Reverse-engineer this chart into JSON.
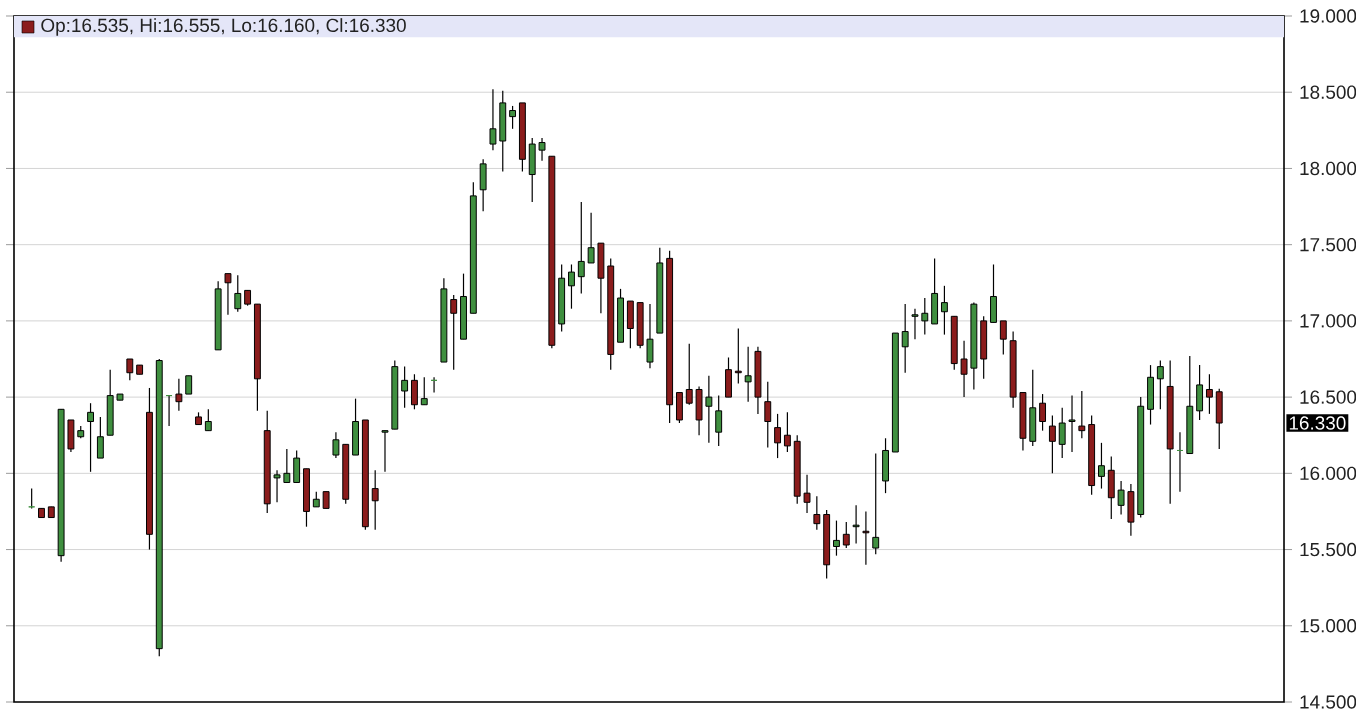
{
  "chart_data": {
    "type": "candlestick",
    "categories": [
      null,
      null,
      null,
      null,
      null,
      null,
      null,
      null,
      null,
      null,
      null,
      null,
      null,
      null,
      null,
      null,
      null,
      null,
      null,
      null,
      null,
      null,
      null,
      null,
      null,
      null,
      null,
      null,
      null,
      null,
      null,
      null,
      null,
      null,
      null,
      null,
      null,
      null,
      null,
      null,
      null,
      null,
      null,
      null,
      null,
      null,
      null,
      null,
      null,
      null,
      null,
      null,
      null,
      null,
      null,
      null,
      null,
      null,
      null,
      null,
      null,
      null,
      null,
      null,
      null,
      null,
      null,
      null,
      null,
      null,
      null,
      null,
      null,
      null,
      null,
      null,
      null,
      null,
      null,
      null,
      null,
      null,
      null,
      null,
      null,
      null,
      null,
      null,
      null,
      null,
      null,
      null,
      null,
      null,
      null,
      null,
      null,
      null,
      null,
      null,
      null,
      null,
      null,
      null,
      null,
      null,
      null,
      null,
      null,
      null,
      null,
      null,
      null,
      null,
      null,
      null,
      null,
      null,
      null,
      null,
      null,
      null
    ],
    "ohlc": [
      [
        15.78,
        15.9,
        15.77,
        15.78
      ],
      [
        15.77,
        15.77,
        15.71,
        15.71
      ],
      [
        15.78,
        15.78,
        15.71,
        15.71
      ],
      [
        15.46,
        16.42,
        15.42,
        16.42
      ],
      [
        16.35,
        16.35,
        16.14,
        16.16
      ],
      [
        16.24,
        16.31,
        16.23,
        16.28
      ],
      [
        16.34,
        16.46,
        16.01,
        16.4
      ],
      [
        16.1,
        16.37,
        16.1,
        16.24
      ],
      [
        16.25,
        16.68,
        16.25,
        16.51
      ],
      [
        16.48,
        16.52,
        16.48,
        16.52
      ],
      [
        16.75,
        16.75,
        16.61,
        16.66
      ],
      [
        16.71,
        16.71,
        16.65,
        16.65
      ],
      [
        16.4,
        16.56,
        15.5,
        15.6
      ],
      [
        14.85,
        16.75,
        14.8,
        16.74
      ],
      [
        16.51,
        16.51,
        16.31,
        16.51
      ],
      [
        16.52,
        16.62,
        16.41,
        16.47
      ],
      [
        16.52,
        16.64,
        16.52,
        16.64
      ],
      [
        16.37,
        16.4,
        16.32,
        16.32
      ],
      [
        16.28,
        16.42,
        16.28,
        16.34
      ],
      [
        16.81,
        17.26,
        16.81,
        17.21
      ],
      [
        17.31,
        17.31,
        17.04,
        17.25
      ],
      [
        17.08,
        17.3,
        17.06,
        17.18
      ],
      [
        17.2,
        17.2,
        17.1,
        17.11
      ],
      [
        17.11,
        17.11,
        16.41,
        16.62
      ],
      [
        16.28,
        16.41,
        15.74,
        15.8
      ],
      [
        15.97,
        16.02,
        15.81,
        15.99
      ],
      [
        15.94,
        16.16,
        15.94,
        16.0
      ],
      [
        15.94,
        16.15,
        15.94,
        16.1
      ],
      [
        16.03,
        16.03,
        15.65,
        15.75
      ],
      [
        15.78,
        15.88,
        15.78,
        15.83
      ],
      [
        15.88,
        15.88,
        15.77,
        15.77
      ],
      [
        16.12,
        16.27,
        16.1,
        16.22
      ],
      [
        16.19,
        16.19,
        15.8,
        15.83
      ],
      [
        16.12,
        16.49,
        16.12,
        16.34
      ],
      [
        16.35,
        16.35,
        15.63,
        15.65
      ],
      [
        15.9,
        16.02,
        15.63,
        15.82
      ],
      [
        16.27,
        16.28,
        16.01,
        16.28
      ],
      [
        16.29,
        16.74,
        16.29,
        16.7
      ],
      [
        16.54,
        16.7,
        16.43,
        16.61
      ],
      [
        16.61,
        16.65,
        16.42,
        16.45
      ],
      [
        16.45,
        16.63,
        16.45,
        16.49
      ],
      [
        16.61,
        16.63,
        16.53,
        16.61
      ],
      [
        16.73,
        17.28,
        16.73,
        17.21
      ],
      [
        17.14,
        17.17,
        16.68,
        17.05
      ],
      [
        16.88,
        17.31,
        16.88,
        17.16
      ],
      [
        17.05,
        17.91,
        17.05,
        17.82
      ],
      [
        17.86,
        18.06,
        17.72,
        18.03
      ],
      [
        18.16,
        18.52,
        18.12,
        18.26
      ],
      [
        18.18,
        18.51,
        17.98,
        18.43
      ],
      [
        18.34,
        18.41,
        18.26,
        18.38
      ],
      [
        18.43,
        18.43,
        17.98,
        18.06
      ],
      [
        17.96,
        18.2,
        17.78,
        18.16
      ],
      [
        18.12,
        18.2,
        18.05,
        18.17
      ],
      [
        18.08,
        18.08,
        16.82,
        16.84
      ],
      [
        16.98,
        17.37,
        16.93,
        17.28
      ],
      [
        17.23,
        17.37,
        17.08,
        17.32
      ],
      [
        17.29,
        17.78,
        17.18,
        17.39
      ],
      [
        17.38,
        17.71,
        17.38,
        17.48
      ],
      [
        17.51,
        17.51,
        17.05,
        17.28
      ],
      [
        17.36,
        17.41,
        16.68,
        16.78
      ],
      [
        16.86,
        17.21,
        16.86,
        17.15
      ],
      [
        17.13,
        17.13,
        16.82,
        16.95
      ],
      [
        17.12,
        17.12,
        16.82,
        16.84
      ],
      [
        16.73,
        17.11,
        16.69,
        16.88
      ],
      [
        16.92,
        17.48,
        16.92,
        17.38
      ],
      [
        17.41,
        17.46,
        16.33,
        16.45
      ],
      [
        16.53,
        16.53,
        16.33,
        16.35
      ],
      [
        16.55,
        16.85,
        16.45,
        16.46
      ],
      [
        16.55,
        16.57,
        16.25,
        16.35
      ],
      [
        16.44,
        16.64,
        16.2,
        16.5
      ],
      [
        16.27,
        16.51,
        16.18,
        16.41
      ],
      [
        16.68,
        16.76,
        16.5,
        16.5
      ],
      [
        16.67,
        16.95,
        16.59,
        16.66
      ],
      [
        16.6,
        16.83,
        16.47,
        16.64
      ],
      [
        16.8,
        16.83,
        16.39,
        16.5
      ],
      [
        16.47,
        16.6,
        16.17,
        16.34
      ],
      [
        16.3,
        16.39,
        16.1,
        16.2
      ],
      [
        16.25,
        16.4,
        16.14,
        16.18
      ],
      [
        16.21,
        16.25,
        15.8,
        15.85
      ],
      [
        15.87,
        15.99,
        15.74,
        15.81
      ],
      [
        15.73,
        15.85,
        15.63,
        15.67
      ],
      [
        15.73,
        15.76,
        15.31,
        15.4
      ],
      [
        15.52,
        15.69,
        15.46,
        15.56
      ],
      [
        15.6,
        15.68,
        15.51,
        15.53
      ],
      [
        15.65,
        15.79,
        15.54,
        15.66
      ],
      [
        15.62,
        15.75,
        15.4,
        15.61
      ],
      [
        15.51,
        16.13,
        15.47,
        15.58
      ],
      [
        15.95,
        16.23,
        15.87,
        16.15
      ],
      [
        16.14,
        16.92,
        16.14,
        16.92
      ],
      [
        16.83,
        17.11,
        16.66,
        16.93
      ],
      [
        17.03,
        17.08,
        16.88,
        17.04
      ],
      [
        17.0,
        17.15,
        16.91,
        17.05
      ],
      [
        16.98,
        17.41,
        16.98,
        17.18
      ],
      [
        17.06,
        17.23,
        16.91,
        17.12
      ],
      [
        17.03,
        17.03,
        16.68,
        16.72
      ],
      [
        16.75,
        16.87,
        16.5,
        16.65
      ],
      [
        16.69,
        17.12,
        16.55,
        17.11
      ],
      [
        17.0,
        17.03,
        16.62,
        16.75
      ],
      [
        16.99,
        17.37,
        16.99,
        17.16
      ],
      [
        17.0,
        17.0,
        16.78,
        16.88
      ],
      [
        16.87,
        16.93,
        16.43,
        16.5
      ],
      [
        16.53,
        16.53,
        16.15,
        16.23
      ],
      [
        16.21,
        16.68,
        16.18,
        16.43
      ],
      [
        16.46,
        16.52,
        16.28,
        16.34
      ],
      [
        16.31,
        16.38,
        16.0,
        16.21
      ],
      [
        16.19,
        16.43,
        16.1,
        16.33
      ],
      [
        16.34,
        16.51,
        16.14,
        16.35
      ],
      [
        16.31,
        16.54,
        16.23,
        16.28
      ],
      [
        16.32,
        16.38,
        15.86,
        15.92
      ],
      [
        15.98,
        16.2,
        15.9,
        16.05
      ],
      [
        16.02,
        16.11,
        15.7,
        15.84
      ],
      [
        15.79,
        15.95,
        15.73,
        15.89
      ],
      [
        15.88,
        15.93,
        15.59,
        15.68
      ],
      [
        15.73,
        16.5,
        15.71,
        16.44
      ],
      [
        16.42,
        16.71,
        16.32,
        16.63
      ],
      [
        16.62,
        16.74,
        16.42,
        16.7
      ],
      [
        16.57,
        16.74,
        15.8,
        16.16
      ],
      [
        16.15,
        16.27,
        15.88,
        16.15
      ],
      [
        16.13,
        16.77,
        16.13,
        16.44
      ],
      [
        16.41,
        16.71,
        16.35,
        16.58
      ],
      [
        16.55,
        16.65,
        16.39,
        16.5
      ],
      [
        16.535,
        16.555,
        16.16,
        16.33
      ]
    ],
    "colors": [
      "#3f8f3f",
      "#8b1c1c",
      "#8b1c1c",
      "#3f8f3f",
      "#8b1c1c",
      "#3f8f3f",
      "#3f8f3f",
      "#3f8f3f",
      "#3f8f3f",
      "#3f8f3f",
      "#8b1c1c",
      "#8b1c1c",
      "#8b1c1c",
      "#3f8f3f",
      "#3f8f3f",
      "#8b1c1c",
      "#3f8f3f",
      "#8b1c1c",
      "#3f8f3f",
      "#3f8f3f",
      "#8b1c1c",
      "#3f8f3f",
      "#8b1c1c",
      "#8b1c1c",
      "#8b1c1c",
      "#3f8f3f",
      "#3f8f3f",
      "#3f8f3f",
      "#8b1c1c",
      "#3f8f3f",
      "#8b1c1c",
      "#3f8f3f",
      "#8b1c1c",
      "#3f8f3f",
      "#8b1c1c",
      "#8b1c1c",
      "#3f8f3f",
      "#3f8f3f",
      "#3f8f3f",
      "#8b1c1c",
      "#3f8f3f",
      "#3f8f3f",
      "#3f8f3f",
      "#8b1c1c",
      "#3f8f3f",
      "#3f8f3f",
      "#3f8f3f",
      "#3f8f3f",
      "#3f8f3f",
      "#3f8f3f",
      "#8b1c1c",
      "#3f8f3f",
      "#3f8f3f",
      "#8b1c1c",
      "#3f8f3f",
      "#3f8f3f",
      "#3f8f3f",
      "#3f8f3f",
      "#8b1c1c",
      "#8b1c1c",
      "#3f8f3f",
      "#8b1c1c",
      "#8b1c1c",
      "#3f8f3f",
      "#3f8f3f",
      "#8b1c1c",
      "#8b1c1c",
      "#8b1c1c",
      "#8b1c1c",
      "#3f8f3f",
      "#3f8f3f",
      "#8b1c1c",
      "#8b1c1c",
      "#3f8f3f",
      "#8b1c1c",
      "#8b1c1c",
      "#8b1c1c",
      "#8b1c1c",
      "#8b1c1c",
      "#8b1c1c",
      "#8b1c1c",
      "#8b1c1c",
      "#3f8f3f",
      "#8b1c1c",
      "#3f8f3f",
      "#8b1c1c",
      "#3f8f3f",
      "#3f8f3f",
      "#3f8f3f",
      "#3f8f3f",
      "#3f8f3f",
      "#3f8f3f",
      "#3f8f3f",
      "#3f8f3f",
      "#8b1c1c",
      "#8b1c1c",
      "#3f8f3f",
      "#8b1c1c",
      "#3f8f3f",
      "#8b1c1c",
      "#8b1c1c",
      "#8b1c1c",
      "#3f8f3f",
      "#8b1c1c",
      "#8b1c1c",
      "#3f8f3f",
      "#3f8f3f",
      "#8b1c1c",
      "#8b1c1c",
      "#3f8f3f",
      "#8b1c1c",
      "#3f8f3f",
      "#8b1c1c",
      "#3f8f3f",
      "#3f8f3f",
      "#3f8f3f",
      "#8b1c1c",
      "#3f8f3f",
      "#3f8f3f",
      "#3f8f3f",
      "#8b1c1c",
      "#8b1c1c"
    ],
    "ylim": [
      14.5,
      19.0
    ],
    "yticks": [
      {
        "value": 14.5,
        "label": "14.500"
      },
      {
        "value": 15.0,
        "label": "15.000"
      },
      {
        "value": 15.5,
        "label": "15.500"
      },
      {
        "value": 16.0,
        "label": "16.000"
      },
      {
        "value": 16.5,
        "label": "16.500"
      },
      {
        "value": 17.0,
        "label": "17.000"
      },
      {
        "value": 17.5,
        "label": "17.500"
      },
      {
        "value": 18.0,
        "label": "18.000"
      },
      {
        "value": 18.5,
        "label": "18.500"
      },
      {
        "value": 19.0,
        "label": "19.000"
      }
    ],
    "bands": [
      {
        "axis": "y",
        "from": 18.86,
        "to": 19.0,
        "color": "#e4e6f8"
      }
    ],
    "grid": "y",
    "tick_labels": "y",
    "annotations": [
      "Op:16.535, Hi:16.555, Lo:16.160, Cl:16.330",
      "16.330"
    ]
  }
}
